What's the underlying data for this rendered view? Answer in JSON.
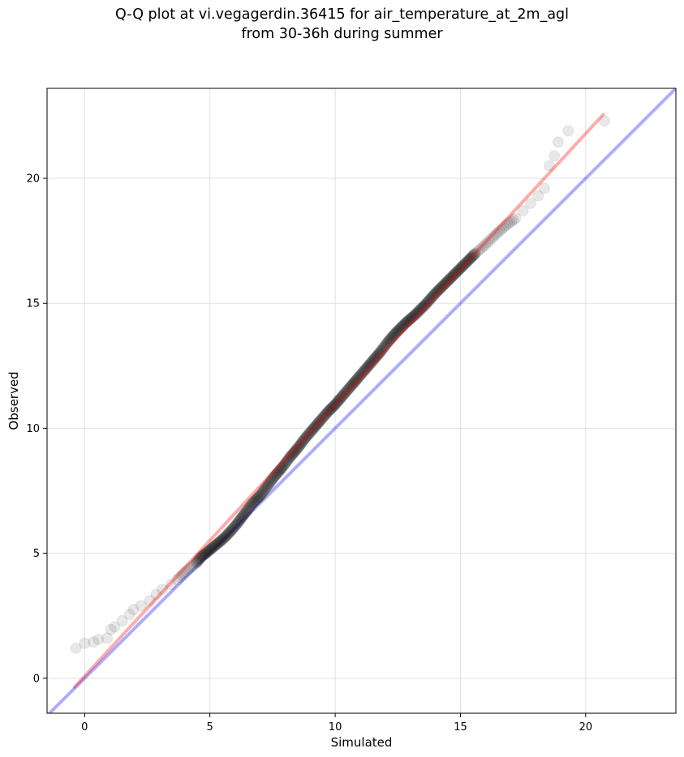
{
  "chart_data": {
    "type": "scatter",
    "title": "Q-Q plot at vi.vegagerdin.36415 for air_temperature_at_2m_agl",
    "subtitle": "from 30-36h during summer",
    "xlabel": "Simulated",
    "ylabel": "Observed",
    "xlim": [
      -1.5,
      23.6
    ],
    "ylim": [
      -1.4,
      23.6
    ],
    "xticks": [
      0,
      5,
      10,
      15,
      20
    ],
    "yticks": [
      0,
      5,
      10,
      15,
      20
    ],
    "xtick_labels": [
      "0",
      "5",
      "10",
      "15",
      "20"
    ],
    "ytick_labels": [
      "0",
      "5",
      "10",
      "15",
      "20"
    ],
    "grid": true,
    "colors": {
      "points": "#000000",
      "fit_line": "#ff0000",
      "identity_line": "#0000ff",
      "grid": "#e0e0e0"
    },
    "quantile_points": {
      "x": [
        -0.35,
        0.0,
        0.35,
        0.55,
        0.9,
        1.05,
        1.2,
        1.5,
        1.8,
        1.95,
        2.25,
        2.6,
        2.85,
        3.1,
        3.45,
        3.7,
        3.95,
        4.2,
        4.45,
        4.65,
        4.9,
        5.2,
        5.5,
        5.8,
        6.1,
        6.4,
        6.7,
        7.0,
        7.3,
        7.6,
        7.9,
        8.2,
        8.5,
        8.8,
        9.1,
        9.4,
        9.7,
        10.0,
        10.3,
        10.6,
        10.9,
        11.2,
        11.5,
        11.8,
        12.1,
        12.4,
        12.8,
        13.2,
        13.6,
        14.0,
        14.4,
        14.8,
        15.2,
        15.6,
        16.0,
        16.4,
        16.8,
        17.2,
        17.5,
        17.8,
        18.1,
        18.35,
        18.55,
        18.75,
        18.9,
        19.3,
        20.75
      ],
      "y": [
        1.2,
        1.4,
        1.45,
        1.55,
        1.6,
        1.95,
        2.05,
        2.3,
        2.55,
        2.75,
        2.9,
        3.1,
        3.35,
        3.55,
        3.75,
        3.95,
        4.2,
        4.4,
        4.6,
        4.85,
        5.05,
        5.3,
        5.55,
        5.85,
        6.2,
        6.6,
        7.0,
        7.3,
        7.7,
        8.1,
        8.45,
        8.85,
        9.2,
        9.6,
        9.95,
        10.3,
        10.65,
        10.95,
        11.3,
        11.65,
        12.0,
        12.35,
        12.7,
        13.05,
        13.45,
        13.8,
        14.2,
        14.55,
        14.95,
        15.4,
        15.8,
        16.2,
        16.6,
        17.0,
        17.35,
        17.75,
        18.1,
        18.4,
        18.7,
        19.0,
        19.3,
        19.6,
        20.5,
        20.9,
        21.45,
        21.9,
        22.3
      ]
    },
    "fit_line": {
      "x": [
        -0.4,
        20.7
      ],
      "y": [
        -0.35,
        22.55
      ]
    },
    "identity_line": {
      "x": [
        -1.5,
        23.6
      ],
      "y": [
        -1.5,
        23.6
      ]
    }
  }
}
